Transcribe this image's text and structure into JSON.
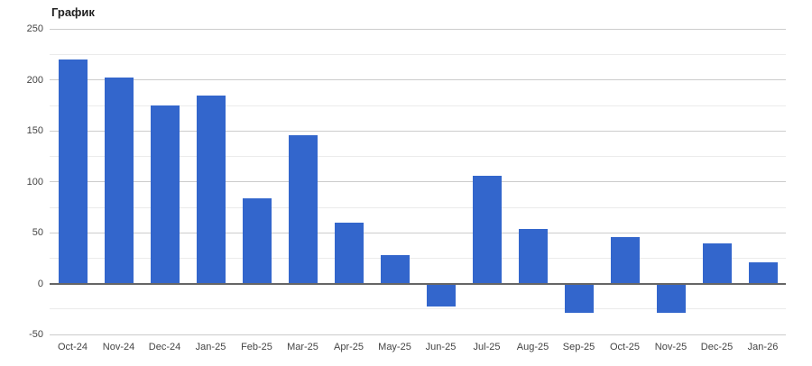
{
  "chart": {
    "title": "График"
  },
  "chart_data": {
    "type": "bar",
    "title": "График",
    "categories": [
      "Oct-24",
      "Nov-24",
      "Dec-24",
      "Jan-25",
      "Feb-25",
      "Mar-25",
      "Apr-25",
      "May-25",
      "Jun-25",
      "Jul-25",
      "Aug-25",
      "Sep-25",
      "Oct-25",
      "Nov-25",
      "Dec-25",
      "Jan-26"
    ],
    "values": [
      220,
      203,
      175,
      185,
      84,
      146,
      60,
      28,
      -22,
      106,
      54,
      -29,
      46,
      -29,
      40,
      21
    ],
    "xlabel": "",
    "ylabel": "",
    "ylim": [
      -50,
      250
    ],
    "y_tick_step": 50,
    "y_minor_gridline_step": 25,
    "y_tick_labels": [
      "250",
      "200",
      "150",
      "100",
      "50",
      "0",
      "-50"
    ],
    "grid": true,
    "legend": "none",
    "colors": {
      "bar": "#3366cc",
      "major_gridline": "#cccccc",
      "minor_gridline": "#ebebeb",
      "zero_axis": "#666666",
      "axis_label": "#444444",
      "title": "#212121",
      "background": "#ffffff"
    }
  }
}
